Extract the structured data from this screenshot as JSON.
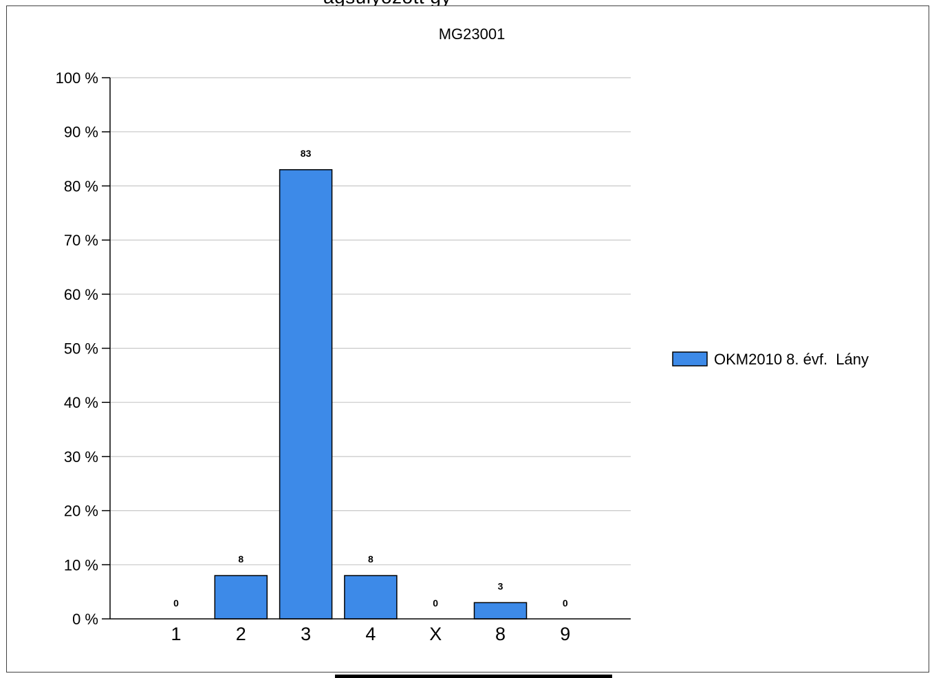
{
  "chart_data": {
    "type": "bar",
    "title": "MG23001",
    "categories": [
      "1",
      "2",
      "3",
      "4",
      "X",
      "8",
      "9"
    ],
    "series": [
      {
        "name": "OKM2010 8. évf.  Lány",
        "values": [
          0,
          8,
          83,
          8,
          0,
          3,
          0
        ]
      }
    ],
    "data_labels": [
      "0",
      "8",
      "83",
      "8",
      "0",
      "3",
      "0"
    ],
    "ylim": [
      0,
      100
    ],
    "yticks": [
      "0 %",
      "10 %",
      "20 %",
      "30 %",
      "40 %",
      "50 %",
      "60 %",
      "70 %",
      "80 %",
      "90 %",
      "100 %"
    ],
    "grid": true,
    "legend_position": "right",
    "bar_color": "#3d8ae8"
  }
}
